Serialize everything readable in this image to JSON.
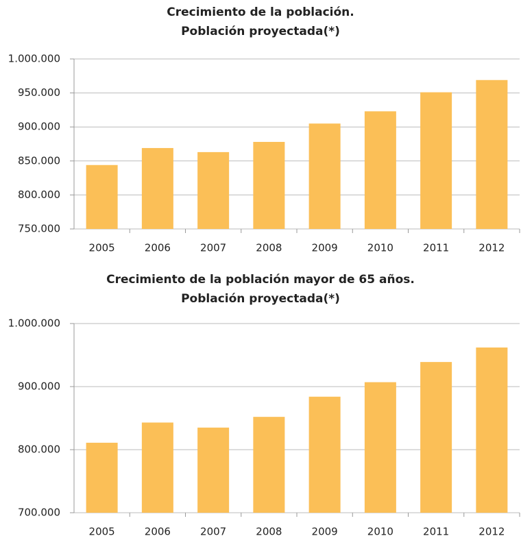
{
  "chart_data": [
    {
      "type": "bar",
      "title": [
        "Crecimiento de la población.",
        "Población proyectada(*)"
      ],
      "categories": [
        "2005",
        "2006",
        "2007",
        "2008",
        "2009",
        "2010",
        "2011",
        "2012"
      ],
      "values": [
        844000,
        869000,
        863000,
        878000,
        905000,
        923000,
        951000,
        969000
      ],
      "color": "#fbbf57",
      "grid": true,
      "ylim": [
        750000,
        1000000
      ],
      "yticks": [
        {
          "value": 750000,
          "label": "750.000"
        },
        {
          "value": 800000,
          "label": "800.000"
        },
        {
          "value": 850000,
          "label": "850.000"
        },
        {
          "value": 900000,
          "label": "900.000"
        },
        {
          "value": 950000,
          "label": "950.000"
        },
        {
          "value": 1000000,
          "label": "1.000.000"
        }
      ]
    },
    {
      "type": "bar",
      "title": [
        "Crecimiento de la población mayor de 65 años.",
        "Población proyectada(*)"
      ],
      "categories": [
        "2005",
        "2006",
        "2007",
        "2008",
        "2009",
        "2010",
        "2011",
        "2012"
      ],
      "values": [
        811000,
        843000,
        835000,
        852000,
        884000,
        907000,
        939000,
        962000
      ],
      "color": "#fbbf57",
      "grid": true,
      "ylim": [
        700000,
        1000000
      ],
      "yticks": [
        {
          "value": 700000,
          "label": "700.000"
        },
        {
          "value": 800000,
          "label": "800.000"
        },
        {
          "value": 900000,
          "label": "900.000"
        },
        {
          "value": 1000000,
          "label": "1.000.000"
        }
      ]
    }
  ]
}
